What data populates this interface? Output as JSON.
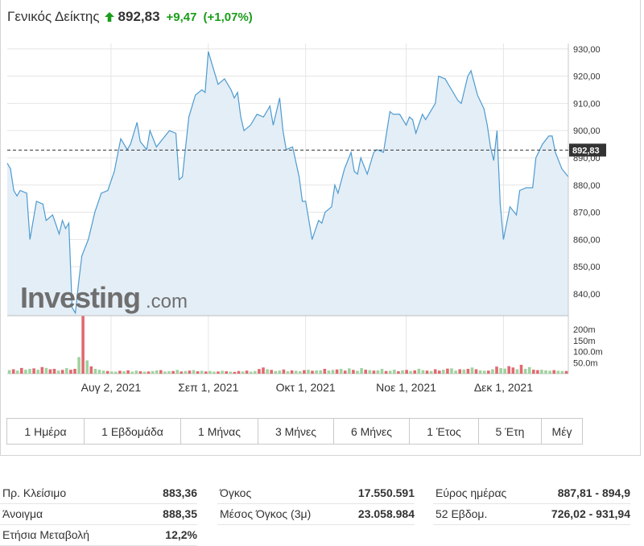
{
  "header": {
    "name": "Γενικός Δείκτης",
    "last": "892,83",
    "change": "+9,47",
    "change_pct": "(+1,07%)",
    "direction_icon": "arrow-up-icon",
    "up_color": "#1a9d1a",
    "down_color": "#d9424a"
  },
  "chart_data": {
    "type": "area",
    "x_start": "2021-07-01",
    "x_end": "2021-12-21",
    "y_ticks": [
      "930,00",
      "920,00",
      "910,00",
      "900,00",
      "890,00",
      "880,00",
      "870,00",
      "860,00",
      "850,00",
      "840,00"
    ],
    "y_tick_values": [
      930,
      920,
      910,
      900,
      890,
      880,
      870,
      860,
      850,
      840
    ],
    "ylim": [
      832,
      932
    ],
    "x_tick_labels": [
      "Αυγ 2, 2021",
      "Σεπ 1, 2021",
      "Οκτ 1, 2021",
      "Νοε 1, 2021",
      "Δεκ 1, 2021"
    ],
    "x_tick_dates": [
      "2021-08-02",
      "2021-09-01",
      "2021-10-01",
      "2021-11-01",
      "2021-12-01"
    ],
    "last_value": 892.83,
    "last_label": "892,83",
    "price": [
      [
        "2021-07-01",
        888
      ],
      [
        "2021-07-02",
        886
      ],
      [
        "2021-07-03",
        878
      ],
      [
        "2021-07-04",
        876
      ],
      [
        "2021-07-05",
        878
      ],
      [
        "2021-07-07",
        877
      ],
      [
        "2021-07-08",
        860
      ],
      [
        "2021-07-10",
        874
      ],
      [
        "2021-07-12",
        873
      ],
      [
        "2021-07-13",
        867
      ],
      [
        "2021-07-15",
        869
      ],
      [
        "2021-07-17",
        862
      ],
      [
        "2021-07-18",
        867
      ],
      [
        "2021-07-19",
        864
      ],
      [
        "2021-07-20",
        866
      ],
      [
        "2021-07-21",
        835
      ],
      [
        "2021-07-22",
        833
      ],
      [
        "2021-07-23",
        844
      ],
      [
        "2021-07-24",
        854
      ],
      [
        "2021-07-26",
        860
      ],
      [
        "2021-07-28",
        870
      ],
      [
        "2021-07-30",
        877
      ],
      [
        "2021-08-01",
        878
      ],
      [
        "2021-08-03",
        885
      ],
      [
        "2021-08-05",
        897
      ],
      [
        "2021-08-07",
        893
      ],
      [
        "2021-08-08",
        895
      ],
      [
        "2021-08-10",
        903
      ],
      [
        "2021-08-11",
        896
      ],
      [
        "2021-08-13",
        893
      ],
      [
        "2021-08-14",
        900
      ],
      [
        "2021-08-16",
        894
      ],
      [
        "2021-08-18",
        897
      ],
      [
        "2021-08-20",
        900
      ],
      [
        "2021-08-22",
        899
      ],
      [
        "2021-08-23",
        882
      ],
      [
        "2021-08-24",
        883
      ],
      [
        "2021-08-26",
        905
      ],
      [
        "2021-08-28",
        913
      ],
      [
        "2021-08-30",
        915
      ],
      [
        "2021-08-31",
        914
      ],
      [
        "2021-09-01",
        929
      ],
      [
        "2021-09-02",
        925
      ],
      [
        "2021-09-04",
        917
      ],
      [
        "2021-09-06",
        919
      ],
      [
        "2021-09-08",
        915
      ],
      [
        "2021-09-09",
        912
      ],
      [
        "2021-09-10",
        914
      ],
      [
        "2021-09-11",
        905
      ],
      [
        "2021-09-12",
        900
      ],
      [
        "2021-09-14",
        902
      ],
      [
        "2021-09-16",
        906
      ],
      [
        "2021-09-18",
        905
      ],
      [
        "2021-09-20",
        909
      ],
      [
        "2021-09-21",
        902
      ],
      [
        "2021-09-23",
        912
      ],
      [
        "2021-09-24",
        900
      ],
      [
        "2021-09-25",
        893
      ],
      [
        "2021-09-27",
        894
      ],
      [
        "2021-09-29",
        883
      ],
      [
        "2021-09-30",
        874
      ],
      [
        "2021-10-01",
        874
      ],
      [
        "2021-10-03",
        860
      ],
      [
        "2021-10-05",
        867
      ],
      [
        "2021-10-06",
        866
      ],
      [
        "2021-10-07",
        870
      ],
      [
        "2021-10-09",
        872
      ],
      [
        "2021-10-10",
        880
      ],
      [
        "2021-10-11",
        877
      ],
      [
        "2021-10-13",
        886
      ],
      [
        "2021-10-15",
        892
      ],
      [
        "2021-10-16",
        885
      ],
      [
        "2021-10-17",
        884
      ],
      [
        "2021-10-18",
        890
      ],
      [
        "2021-10-20",
        884
      ],
      [
        "2021-10-22",
        892
      ],
      [
        "2021-10-23",
        893
      ],
      [
        "2021-10-25",
        892
      ],
      [
        "2021-10-27",
        907
      ],
      [
        "2021-10-28",
        906
      ],
      [
        "2021-10-30",
        906
      ],
      [
        "2021-11-01",
        902
      ],
      [
        "2021-11-02",
        905
      ],
      [
        "2021-11-03",
        904
      ],
      [
        "2021-11-04",
        899
      ],
      [
        "2021-11-06",
        906
      ],
      [
        "2021-11-07",
        904
      ],
      [
        "2021-11-09",
        908
      ],
      [
        "2021-11-10",
        910
      ],
      [
        "2021-11-11",
        920
      ],
      [
        "2021-11-13",
        919
      ],
      [
        "2021-11-15",
        915
      ],
      [
        "2021-11-17",
        911
      ],
      [
        "2021-11-18",
        910
      ],
      [
        "2021-11-20",
        920
      ],
      [
        "2021-11-21",
        922
      ],
      [
        "2021-11-23",
        913
      ],
      [
        "2021-11-25",
        908
      ],
      [
        "2021-11-26",
        902
      ],
      [
        "2021-11-27",
        894
      ],
      [
        "2021-11-28",
        889
      ],
      [
        "2021-11-29",
        900
      ],
      [
        "2021-11-30",
        873
      ],
      [
        "2021-12-01",
        860
      ],
      [
        "2021-12-03",
        872
      ],
      [
        "2021-12-05",
        869
      ],
      [
        "2021-12-06",
        878
      ],
      [
        "2021-12-08",
        879
      ],
      [
        "2021-12-10",
        879
      ],
      [
        "2021-12-11",
        890
      ],
      [
        "2021-12-13",
        895
      ],
      [
        "2021-12-15",
        898
      ],
      [
        "2021-12-16",
        898
      ],
      [
        "2021-12-17",
        892
      ],
      [
        "2021-12-19",
        886
      ],
      [
        "2021-12-21",
        883
      ]
    ],
    "volume_ticks": [
      "200m",
      "150m",
      "100.0m",
      "50.0m"
    ],
    "volume_tick_values": [
      200,
      150,
      100,
      50
    ],
    "volume_max": 262,
    "volume_unit": "m",
    "volume": [
      16,
      20,
      14,
      26,
      18,
      22,
      24,
      18,
      30,
      26,
      20,
      22,
      14,
      17,
      25,
      18,
      22,
      75,
      260,
      60,
      33,
      22,
      18,
      14,
      12,
      10,
      9,
      13,
      11,
      15,
      9,
      14,
      11,
      9,
      10,
      12,
      15,
      16,
      10,
      11,
      12,
      17,
      10,
      12,
      14,
      16,
      11,
      13,
      10,
      12,
      9,
      10,
      13,
      11,
      9,
      8,
      12,
      10,
      14,
      9,
      12,
      21,
      28,
      20,
      17,
      12,
      14,
      19,
      11,
      15,
      13,
      11,
      16,
      18,
      13,
      15,
      15,
      22,
      14,
      17,
      19,
      22,
      14,
      24,
      17,
      13,
      25,
      18,
      16,
      14,
      15,
      22,
      12,
      13,
      18,
      11,
      15,
      17,
      12,
      15,
      22,
      16,
      14,
      12,
      20,
      14,
      18,
      23,
      24,
      14,
      20,
      19,
      22,
      28,
      20,
      15,
      13,
      14,
      20,
      32,
      25,
      23,
      34,
      28,
      20,
      40,
      22,
      30,
      18,
      16,
      18,
      15,
      13,
      16,
      13,
      12,
      12
    ],
    "volume_up": [
      1,
      0,
      1,
      0,
      1,
      1,
      0,
      1,
      0,
      1,
      0,
      0,
      1,
      0,
      1,
      0,
      0,
      1,
      0,
      1,
      0,
      1,
      1,
      1,
      0,
      1,
      1,
      0,
      1,
      0,
      1,
      1,
      0,
      1,
      0,
      1,
      1,
      0,
      1,
      1,
      0,
      1,
      0,
      1,
      0,
      1,
      0,
      1,
      0,
      1,
      1,
      0,
      1,
      0,
      1,
      0,
      0,
      1,
      0,
      1,
      1,
      0,
      0,
      1,
      0,
      1,
      1,
      0,
      1,
      0,
      1,
      1,
      0,
      1,
      0,
      1,
      1,
      0,
      1,
      1,
      0,
      1,
      0,
      1,
      0,
      1,
      1,
      0,
      1,
      0,
      1,
      1,
      0,
      1,
      1,
      0,
      1,
      0,
      1,
      0,
      1,
      1,
      0,
      1,
      0,
      0,
      1,
      0,
      1,
      1,
      0,
      1,
      0,
      1,
      0,
      1,
      1,
      0,
      1,
      0,
      1,
      1,
      0,
      0,
      1,
      0,
      1,
      1,
      0,
      0,
      1,
      1,
      1,
      0,
      1,
      1,
      0
    ],
    "colors": {
      "line": "#4d9bd0",
      "fill": "#e4eef7",
      "vol_up": "#9fd29f",
      "vol_down": "#e06a70",
      "grid": "#e5e5e5"
    }
  },
  "watermark": {
    "brand": "Investing",
    "suffix": ".com"
  },
  "tabs": [
    {
      "label": "1 Ημέρα",
      "w": 96
    },
    {
      "label": "1 Εβδομάδα",
      "w": 120
    },
    {
      "label": "1 Μήνας",
      "w": 96
    },
    {
      "label": "3 Μήνες",
      "w": 94
    },
    {
      "label": "6 Μήνες",
      "w": 94
    },
    {
      "label": "1 Έτος",
      "w": 86
    },
    {
      "label": "5 Έτη",
      "w": 78
    },
    {
      "label": "Μέγ",
      "w": 50
    }
  ],
  "stats": {
    "col1": [
      {
        "label": "Πρ. Κλείσιμο",
        "value": "883,36"
      },
      {
        "label": "Άνοιγμα",
        "value": "888,35"
      },
      {
        "label": "Ετήσια Μεταβολή",
        "value": "12,2%"
      }
    ],
    "col2": [
      {
        "label": "Όγκος",
        "value": "17.550.591"
      },
      {
        "label": "Μέσος Όγκος (3μ)",
        "value": "23.058.984"
      }
    ],
    "col3": [
      {
        "label": "Εύρος ημέρας",
        "value": "887,81 - 894,9"
      },
      {
        "label": "52 Εβδομ.",
        "value": "726,02 - 931,94"
      }
    ]
  }
}
